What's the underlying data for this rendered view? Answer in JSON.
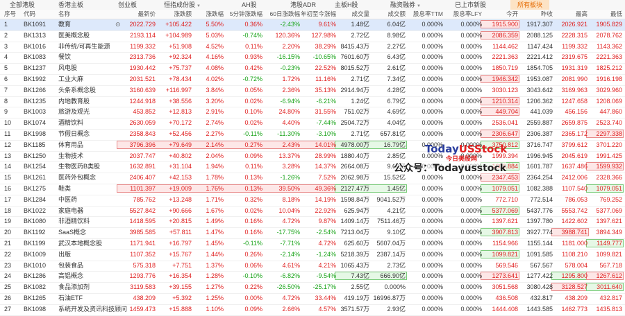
{
  "tabs": [
    {
      "label": "全部港股",
      "arrow": false,
      "active": false
    },
    {
      "label": "香港主板",
      "arrow": false,
      "active": false
    },
    {
      "label": "创业板",
      "arrow": false,
      "active": false
    },
    {
      "label": "恒指成份股",
      "arrow": true,
      "active": false
    },
    {
      "label": "AH股",
      "arrow": false,
      "active": false
    },
    {
      "label": "港股ADR",
      "arrow": false,
      "active": false
    },
    {
      "label": "主板H股",
      "arrow": false,
      "active": false
    },
    {
      "label": "融资融券",
      "arrow": true,
      "active": false
    },
    {
      "label": "已上市新股",
      "arrow": false,
      "active": false
    },
    {
      "label": "所有板块",
      "arrow": false,
      "active": true
    }
  ],
  "columns": [
    "序号",
    "代码",
    "名称",
    "最新价",
    "涨跌额",
    "涨跌幅",
    "5分钟涨跌幅",
    "60日涨跌幅",
    "年初至今涨幅",
    "成交量",
    "成交额",
    "股息率TTM",
    "股息率LFY",
    "今开",
    "昨收",
    "最高",
    "最低"
  ],
  "rows": [
    [
      "1",
      "BK1091",
      "教育",
      "2022.729",
      "+105.422",
      "5.50%",
      "0.36%",
      "-2.43%",
      "9.61%",
      "1.48亿",
      "6.04亿",
      "0.000%",
      "0.000%",
      "1915.900",
      "1917.307",
      "2026.921",
      "1905.829"
    ],
    [
      "2",
      "BK1313",
      "医美概念股",
      "2193.114",
      "+104.989",
      "5.03%",
      "-0.74%",
      "120.36%",
      "127.98%",
      "2.72亿",
      "8.98亿",
      "0.000%",
      "0.000%",
      "2086.359",
      "2088.125",
      "2228.315",
      "2078.762"
    ],
    [
      "3",
      "BK1016",
      "非传统/可再生能源",
      "1199.332",
      "+51.908",
      "4.52%",
      "0.11%",
      "2.20%",
      "38.29%",
      "8415.43万",
      "2.27亿",
      "0.000%",
      "0.000%",
      "1144.462",
      "1147.424",
      "1199.332",
      "1143.362"
    ],
    [
      "4",
      "BK1083",
      "餐饮",
      "2313.736",
      "+92.324",
      "4.16%",
      "0.93%",
      "-16.15%",
      "-10.65%",
      "7601.60万",
      "6.43亿",
      "0.000%",
      "0.000%",
      "2221.363",
      "2221.412",
      "2319.675",
      "2221.363"
    ],
    [
      "5",
      "BK1237",
      "风电股",
      "1930.442",
      "+75.737",
      "4.08%",
      "0.42%",
      "-0.23%",
      "22.52%",
      "8015.52万",
      "2.61亿",
      "0.000%",
      "0.000%",
      "1850.719",
      "1854.705",
      "1931.319",
      "1825.212"
    ],
    [
      "6",
      "BK1992",
      "工业大麻",
      "2031.521",
      "+78.434",
      "4.02%",
      "-0.72%",
      "1.72%",
      "11.16%",
      "2.71亿",
      "7.34亿",
      "0.000%",
      "0.000%",
      "1946.342",
      "1953.087",
      "2081.990",
      "1916.198"
    ],
    [
      "7",
      "BK1266",
      "头条系概念股",
      "3160.639",
      "+116.997",
      "3.84%",
      "0.05%",
      "2.36%",
      "35.13%",
      "2914.94万",
      "4.28亿",
      "0.000%",
      "0.000%",
      "3030.123",
      "3043.642",
      "3169.963",
      "3029.960"
    ],
    [
      "8",
      "BK1235",
      "内地教育股",
      "1244.918",
      "+38.556",
      "3.20%",
      "0.02%",
      "-6.94%",
      "-6.21%",
      "1.24亿",
      "6.79亿",
      "0.000%",
      "0.000%",
      "1210.314",
      "1206.362",
      "1247.658",
      "1208.069"
    ],
    [
      "9",
      "BK1003",
      "旅游及观光",
      "453.852",
      "+12.813",
      "2.91%",
      "0.10%",
      "24.80%",
      "31.55%",
      "751.02万",
      "4.69亿",
      "0.000%",
      "0.000%",
      "449.704",
      "441.039",
      "456.156",
      "447.860"
    ],
    [
      "10",
      "BK1074",
      "酒精饮料",
      "2630.059",
      "+70.172",
      "2.74%",
      "0.02%",
      "4.40%",
      "-7.44%",
      "2504.72万",
      "4.04亿",
      "0.000%",
      "0.000%",
      "2536.041",
      "2559.887",
      "2659.875",
      "2523.740"
    ],
    [
      "11",
      "BK1998",
      "节假日概念",
      "2358.843",
      "+52.456",
      "2.27%",
      "-0.11%",
      "-11.30%",
      "-3.10%",
      "2.71亿",
      "657.81亿",
      "0.000%",
      "0.000%",
      "2306.647",
      "2306.387",
      "2365.172",
      "2297.338"
    ],
    [
      "12",
      "BK1185",
      "体育用品",
      "3796.396",
      "+79.649",
      "2.14%",
      "0.27%",
      "2.43%",
      "14.01%",
      "4978.00万",
      "16.79亿",
      "0.000%",
      "0.000%",
      "3750.812",
      "3716.747",
      "3799.612",
      "3701.220"
    ],
    [
      "13",
      "BK1250",
      "生物技术",
      "2037.747",
      "+40.802",
      "2.04%",
      "0.09%",
      "13.37%",
      "28.99%",
      "1880.40万",
      "2.85亿",
      "0.000%",
      "0.000%",
      "1999.394",
      "1996.945",
      "2045.619",
      "1991.425"
    ],
    [
      "14",
      "BK1254",
      "生物医药B类股",
      "1632.891",
      "+31.104",
      "1.94%",
      "0.11%",
      "3.28%",
      "14.37%",
      "2664.08万",
      "9.60亿",
      "0.000%",
      "0.000%",
      "1606.884",
      "1601.787",
      "1637.486",
      "1599.932"
    ],
    [
      "15",
      "BK1261",
      "医药外包概念",
      "2406.407",
      "+42.153",
      "1.78%",
      "0.13%",
      "-1.26%",
      "7.52%",
      "2062.98万",
      "15.52亿",
      "0.000%",
      "0.000%",
      "2347.453",
      "2364.254",
      "2412.006",
      "2328.366"
    ],
    [
      "16",
      "BK1275",
      "鞋类",
      "1101.397",
      "+19.009",
      "1.76%",
      "0.13%",
      "39.50%",
      "49.36%",
      "2127.47万",
      "1.45亿",
      "0.000%",
      "0.000%",
      "1079.051",
      "1082.388",
      "1107.540",
      "1079.051"
    ],
    [
      "17",
      "BK1284",
      "中医药",
      "785.762",
      "+13.248",
      "1.71%",
      "0.32%",
      "8.18%",
      "14.19%",
      "1598.84万",
      "9041.52万",
      "0.000%",
      "0.000%",
      "772.710",
      "772.514",
      "786.053",
      "769.252"
    ],
    [
      "18",
      "BK1022",
      "家庭电器",
      "5527.842",
      "+90.666",
      "1.67%",
      "0.02%",
      "10.04%",
      "22.92%",
      "625.94万",
      "4.21亿",
      "0.000%",
      "0.000%",
      "5377.069",
      "5437.776",
      "5553.742",
      "5377.069"
    ],
    [
      "19",
      "BK1080",
      "非酒精饮料",
      "1418.595",
      "+20.815",
      "1.49%",
      "0.16%",
      "4.72%",
      "9.87%",
      "1409.14万",
      "7511.46万",
      "0.000%",
      "0.000%",
      "1397.621",
      "1397.780",
      "1422.602",
      "1397.621"
    ],
    [
      "20",
      "BK1192",
      "SaaS概念",
      "3985.585",
      "+57.811",
      "1.47%",
      "0.16%",
      "-17.75%",
      "-2.54%",
      "7213.04万",
      "9.10亿",
      "0.000%",
      "0.000%",
      "3907.813",
      "3927.774",
      "3988.741",
      "3894.349"
    ],
    [
      "21",
      "BK1199",
      "武汉本地概念股",
      "1171.941",
      "+16.797",
      "1.45%",
      "-0.11%",
      "-7.71%",
      "4.72%",
      "625.60万",
      "5607.04万",
      "0.000%",
      "0.000%",
      "1154.966",
      "1155.144",
      "1181.000",
      "1149.777"
    ],
    [
      "22",
      "BK1009",
      "出版",
      "1107.352",
      "+15.767",
      "1.44%",
      "0.26%",
      "-2.14%",
      "-1.24%",
      "5218.39万",
      "2387.14万",
      "0.000%",
      "0.000%",
      "1099.821",
      "1091.585",
      "1108.210",
      "1099.821"
    ],
    [
      "23",
      "BK1010",
      "包装食品",
      "575.318",
      "+7.751",
      "1.37%",
      "0.06%",
      "4.61%",
      "4.21%",
      "1065.43万",
      "2.73亿",
      "0.000%",
      "0.000%",
      "569.546",
      "567.567",
      "578.004",
      "567.718"
    ],
    [
      "24",
      "BK1286",
      "高铝概念",
      "1293.776",
      "+16.354",
      "1.28%",
      "-0.10%",
      "-6.82%",
      "-9.54%",
      "7.43亿",
      "666.90亿",
      "0.000%",
      "0.000%",
      "1273.641",
      "1277.422",
      "1295.800",
      "1267.612"
    ],
    [
      "25",
      "BK1082",
      "食品添加剂",
      "3119.583",
      "+39.155",
      "1.27%",
      "0.22%",
      "-26.50%",
      "-25.17%",
      "2.55亿",
      "0.000%",
      "0.000%",
      "0.000%",
      "3051.568",
      "3080.428",
      "3128.527",
      "3011.640"
    ],
    [
      "26",
      "BK1265",
      "石油ETF",
      "438.209",
      "+5.392",
      "1.25%",
      "0.00%",
      "4.72%",
      "33.44%",
      "419.19万",
      "16996.87万",
      "0.000%",
      "0.000%",
      "436.508",
      "432.817",
      "438.209",
      "432.817"
    ],
    [
      "27",
      "BK1098",
      "系统开发及资讯科技顾问",
      "1459.473",
      "+15.888",
      "1.10%",
      "0.09%",
      "2.66%",
      "4.57%",
      "3571.57万",
      "2.93亿",
      "0.000%",
      "0.000%",
      "1444.408",
      "1443.585",
      "1462.773",
      "1435.813"
    ]
  ],
  "watermark": {
    "brand_a": "Today",
    "brand_b": "USStock",
    "brand_cn": "今日美股网",
    "account": "公众号：Todayusstock"
  },
  "colors": {
    "up": "#e02020",
    "down": "#17a317",
    "active_tab": "#e56a00",
    "selected_row": "#dde9fb"
  },
  "icons": {
    "row_1_action": "target-icon"
  }
}
